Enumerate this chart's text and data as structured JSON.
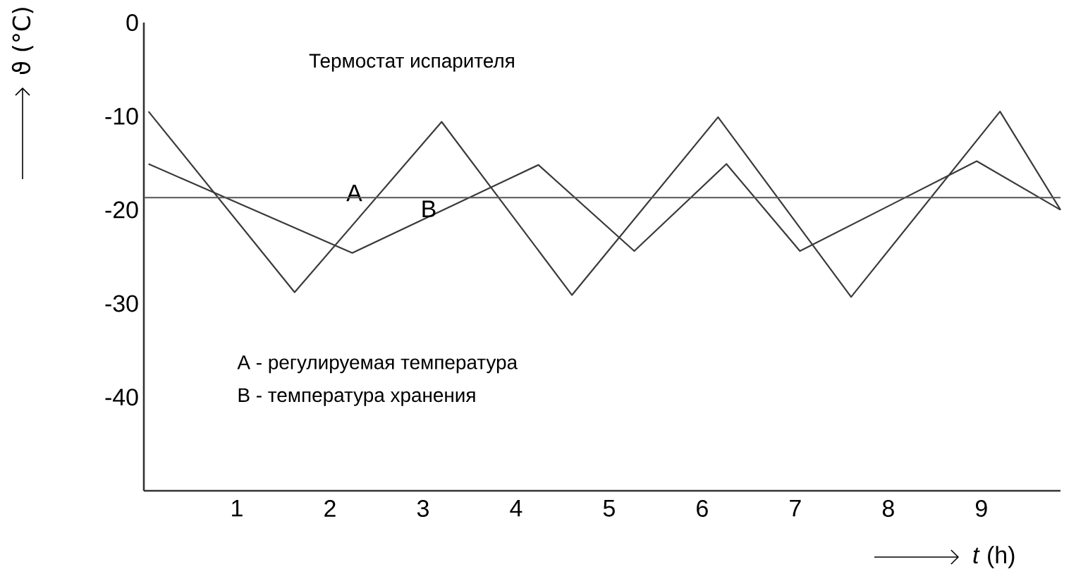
{
  "chart_data": {
    "type": "line",
    "title": "Термостат испарителя",
    "xlabel": "*t* (h)",
    "ylabel": "ϑ (°C)",
    "annotations": [
      "A - регулируемая температура",
      "B - температура хранения"
    ],
    "xlim": [
      0,
      9.85
    ],
    "ylim": [
      -50,
      0
    ],
    "xticks": [
      1,
      2,
      3,
      4,
      5,
      6,
      7,
      8,
      9
    ],
    "yticks": [
      0,
      -10,
      -20,
      -30,
      -40
    ],
    "series": [
      {
        "name": "A",
        "color": "#3a3a3a",
        "x": [
          0.05,
          1.62,
          3.2,
          4.6,
          6.17,
          7.6,
          9.2,
          9.85
        ],
        "values": [
          -9.5,
          -28.8,
          -10.6,
          -29.1,
          -10.1,
          -29.3,
          -9.5,
          -20
        ]
      },
      {
        "name": "B",
        "color": "#3a3a3a",
        "x": [
          0.05,
          2.24,
          4.24,
          5.27,
          6.26,
          7.05,
          8.95,
          9.85
        ],
        "values": [
          -15.1,
          -24.6,
          -15.2,
          -24.4,
          -15.1,
          -24.4,
          -14.8,
          -20
        ]
      }
    ],
    "ref_lines": [
      {
        "axis": "y",
        "value": -18.7,
        "color": "#555555"
      }
    ],
    "marker": "none",
    "line_style": "solid",
    "grid": false
  }
}
